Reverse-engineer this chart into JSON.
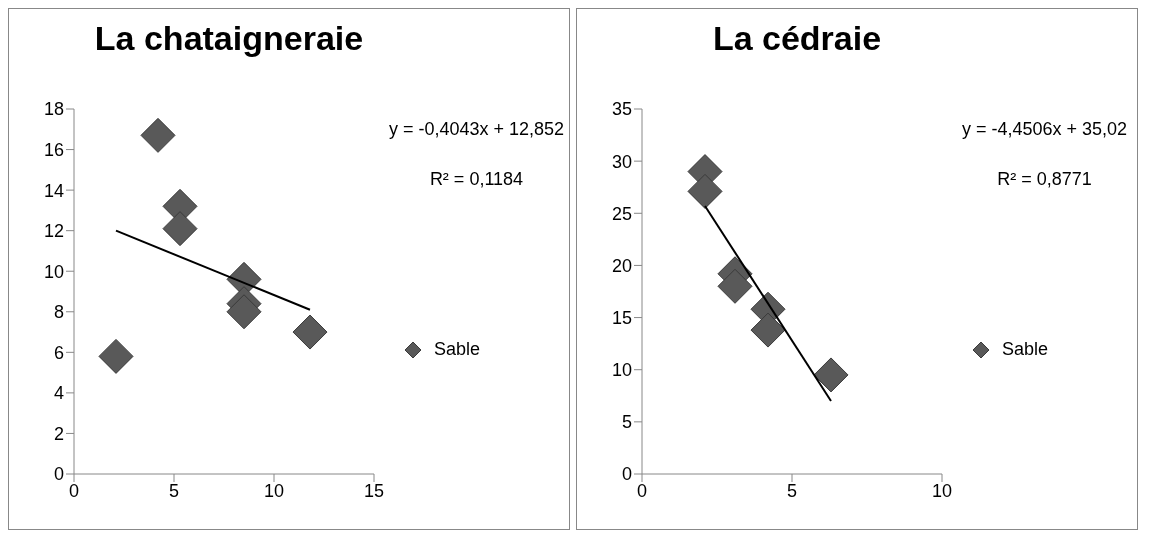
{
  "chart_data": [
    {
      "type": "scatter",
      "title": "La chataigneraie",
      "legend": "right",
      "grid": false,
      "xlim": [
        0,
        15
      ],
      "xticks": [
        0,
        5,
        10,
        15
      ],
      "ylim": [
        0,
        18
      ],
      "yticks": [
        0,
        2,
        4,
        6,
        8,
        10,
        12,
        14,
        16,
        18
      ],
      "annotations": [
        "y = -0,4043x + 12,852",
        "R² = 0,1184"
      ],
      "series": [
        {
          "name": "Sable",
          "type": "scatter",
          "marker": "diamond",
          "color": "#595959",
          "x": [
            2.1,
            4.2,
            5.3,
            5.3,
            8.5,
            8.5,
            8.5,
            11.8
          ],
          "values": [
            5.8,
            16.7,
            13.2,
            12.1,
            9.6,
            8.4,
            8.0,
            7.0
          ]
        },
        {
          "type": "line",
          "color": "#000000",
          "x": [
            2.1,
            11.8
          ],
          "values": [
            12.0,
            8.1
          ]
        }
      ]
    },
    {
      "type": "scatter",
      "title": "La cédraie",
      "legend": "right",
      "grid": false,
      "xlim": [
        0,
        10
      ],
      "xticks": [
        0,
        5,
        10
      ],
      "ylim": [
        0,
        35
      ],
      "yticks": [
        0,
        5,
        10,
        15,
        20,
        25,
        30,
        35
      ],
      "annotations": [
        "y = -4,4506x + 35,02",
        "R² = 0,8771"
      ],
      "series": [
        {
          "name": "Sable",
          "type": "scatter",
          "marker": "diamond",
          "color": "#595959",
          "x": [
            2.1,
            2.1,
            3.1,
            3.1,
            4.2,
            4.2,
            6.3
          ],
          "values": [
            29.0,
            27.1,
            19.2,
            18.0,
            15.8,
            13.8,
            9.5
          ]
        },
        {
          "type": "line",
          "color": "#000000",
          "x": [
            2.1,
            6.3
          ],
          "values": [
            25.7,
            7.0
          ]
        }
      ]
    }
  ]
}
